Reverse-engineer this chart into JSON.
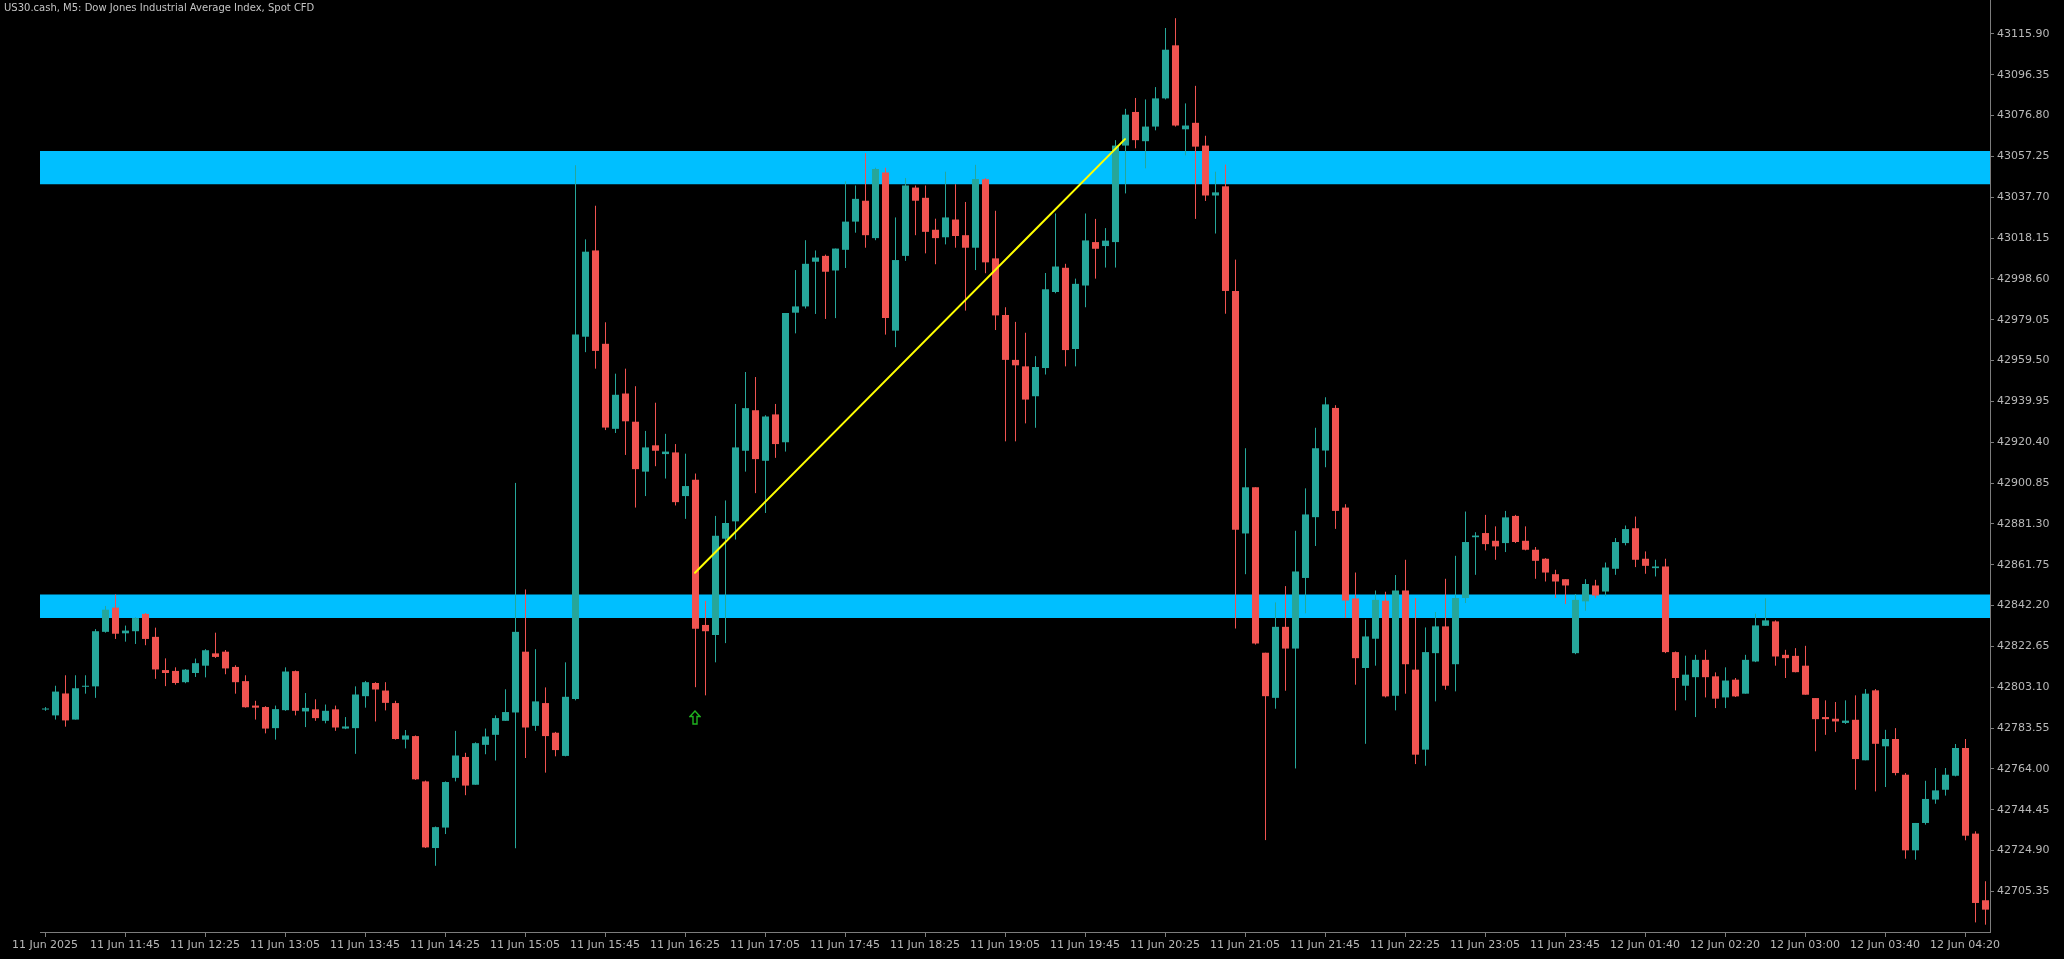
{
  "chart_data": {
    "type": "candlestick",
    "title": "US30.cash, M5: Dow Jones Industrial Average Index, Spot CFD",
    "categories": [
      "11 Jun 2025",
      null,
      null,
      null,
      null,
      null,
      null,
      null,
      "11 Jun 11:45",
      null,
      null,
      null,
      null,
      null,
      null,
      null,
      "11 Jun 12:25",
      null,
      null,
      null,
      null,
      null,
      null,
      null,
      "11 Jun 13:05",
      null,
      null,
      null,
      null,
      null,
      null,
      null,
      "11 Jun 13:45",
      null,
      null,
      null,
      null,
      null,
      null,
      null,
      "11 Jun 14:25",
      null,
      null,
      null,
      null,
      null,
      null,
      null,
      "11 Jun 15:05",
      null,
      null,
      null,
      null,
      null,
      null,
      null,
      "11 Jun 15:45",
      null,
      null,
      null,
      null,
      null,
      null,
      null,
      "11 Jun 16:25",
      null,
      null,
      null,
      null,
      null,
      null,
      null,
      "11 Jun 17:05",
      null,
      null,
      null,
      null,
      null,
      null,
      null,
      "11 Jun 17:45",
      null,
      null,
      null,
      null,
      null,
      null,
      null,
      "11 Jun 18:25",
      null,
      null,
      null,
      null,
      null,
      null,
      null,
      "11 Jun 19:05",
      null,
      null,
      null,
      null,
      null,
      null,
      null,
      "11 Jun 19:45",
      null,
      null,
      null,
      null,
      null,
      null,
      null,
      "11 Jun 20:25",
      null,
      null,
      null,
      null,
      null,
      null,
      null,
      "11 Jun 21:05",
      null,
      null,
      null,
      null,
      null,
      null,
      null,
      "11 Jun 21:45",
      null,
      null,
      null,
      null,
      null,
      null,
      null,
      "11 Jun 22:25",
      null,
      null,
      null,
      null,
      null,
      null,
      null,
      "11 Jun 23:05",
      null,
      null,
      null,
      null,
      null,
      null,
      null,
      "11 Jun 23:45",
      null,
      null,
      null,
      null,
      null,
      null,
      null,
      "12 Jun 01:40",
      null,
      null,
      null,
      null,
      null,
      null,
      null,
      "12 Jun 02:20",
      null,
      null,
      null,
      null,
      null,
      null,
      null,
      "12 Jun 03:00",
      null,
      null,
      null,
      null,
      null,
      null,
      null,
      "12 Jun 03:40",
      null,
      null,
      null,
      null,
      null,
      null,
      null,
      "12 Jun 04:20",
      null,
      null
    ],
    "ohlc": [
      [
        42792.4,
        42793.6,
        42791.8,
        42792.9
      ],
      [
        42789.6,
        42803.8,
        42787.6,
        42801.0
      ],
      [
        42800.1,
        42808.8,
        42784.2,
        42787.2
      ],
      [
        42787.6,
        42808.8,
        42787.6,
        42802.6
      ],
      [
        42803.3,
        42808.8,
        42800.0,
        42803.8
      ],
      [
        42803.5,
        42830.9,
        42798.0,
        42829.9
      ],
      [
        42829.6,
        42842.0,
        42829.2,
        42840.2
      ],
      [
        42841.2,
        42847.5,
        42826.2,
        42828.7
      ],
      [
        42828.9,
        42832.6,
        42824.9,
        42830.2
      ],
      [
        42829.9,
        42836.6,
        42823.8,
        42836.2
      ],
      [
        42838.2,
        42838.6,
        42823.2,
        42826.2
      ],
      [
        42827.2,
        42831.6,
        42807.1,
        42811.6
      ],
      [
        42811.3,
        42816.9,
        42803.6,
        42809.9
      ],
      [
        42810.9,
        42812.6,
        42804.3,
        42805.1
      ],
      [
        42805.5,
        42811.8,
        42805.0,
        42811.5
      ],
      [
        42809.9,
        42816.8,
        42808.0,
        42814.6
      ],
      [
        42813.4,
        42821.3,
        42807.8,
        42820.8
      ],
      [
        42819.3,
        42829.2,
        42817.1,
        42817.6
      ],
      [
        42820.1,
        42820.9,
        42809.3,
        42812.1
      ],
      [
        42812.8,
        42813.6,
        42800.0,
        42805.5
      ],
      [
        42806.0,
        42808.8,
        42793.3,
        42793.5
      ],
      [
        42794.3,
        42796.6,
        42787.6,
        42793.3
      ],
      [
        42793.6,
        42794.0,
        42781.0,
        42783.3
      ],
      [
        42783.5,
        42794.3,
        42778.0,
        42792.6
      ],
      [
        42792.1,
        42812.6,
        42791.8,
        42810.6
      ],
      [
        42810.8,
        42811.1,
        42789.6,
        42791.8
      ],
      [
        42791.5,
        42800.3,
        42784.0,
        42793.2
      ],
      [
        42792.5,
        42797.3,
        42787.0,
        42788.3
      ],
      [
        42787.0,
        42794.8,
        42785.8,
        42791.8
      ],
      [
        42792.5,
        42794.3,
        42782.2,
        42783.8
      ],
      [
        42783.3,
        42788.8,
        42783.0,
        42784.3
      ],
      [
        42783.5,
        42803.5,
        42771.2,
        42799.6
      ],
      [
        42798.8,
        42806.1,
        42793.3,
        42805.5
      ],
      [
        42805.1,
        42805.5,
        42786.7,
        42802.0
      ],
      [
        42801.5,
        42805.5,
        42792.0,
        42795.6
      ],
      [
        42795.5,
        42796.6,
        42778.0,
        42778.3
      ],
      [
        42778.0,
        42782.6,
        42773.8,
        42780.0
      ],
      [
        42779.7,
        42780.0,
        42758.7,
        42759.0
      ],
      [
        42758.0,
        42758.4,
        42726.1,
        42726.4
      ],
      [
        42726.1,
        42736.4,
        42717.6,
        42736.1
      ],
      [
        42735.9,
        42758.0,
        42732.8,
        42757.7
      ],
      [
        42759.7,
        42782.2,
        42758.0,
        42770.4
      ],
      [
        42769.7,
        42771.7,
        42751.4,
        42756.0
      ],
      [
        42756.4,
        42776.7,
        42756.4,
        42776.3
      ],
      [
        42775.5,
        42783.3,
        42771.0,
        42779.5
      ],
      [
        42780.3,
        42789.6,
        42768.0,
        42788.3
      ],
      [
        42787.0,
        42802.1,
        42787.0,
        42791.2
      ],
      [
        42791.0,
        42900.9,
        42726.0,
        42829.6
      ],
      [
        42820.1,
        42849.9,
        42769.2,
        42783.8
      ],
      [
        42784.6,
        42821.3,
        42782.2,
        42796.3
      ],
      [
        42795.5,
        42803.0,
        42762.2,
        42779.7
      ],
      [
        42781.3,
        42781.7,
        42770.0,
        42773.0
      ],
      [
        42770.2,
        42815.0,
        42770.0,
        42798.5
      ],
      [
        42797.4,
        43053.0,
        42796.8,
        42971.9
      ],
      [
        42970.9,
        43017.5,
        42963.5,
        43011.6
      ],
      [
        43012.2,
        43033.6,
        42955.6,
        42964.1
      ],
      [
        42967.5,
        42977.8,
        42926.2,
        42927.4
      ],
      [
        42926.8,
        42953.2,
        42924.8,
        42943.1
      ],
      [
        42943.7,
        42955.6,
        42914.3,
        42930.4
      ],
      [
        42930.2,
        42947.2,
        42889.1,
        42907.5
      ],
      [
        42906.3,
        42925.8,
        42894.6,
        42917.9
      ],
      [
        42918.9,
        42939.3,
        42908.9,
        42916.3
      ],
      [
        42914.7,
        42924.4,
        42903.0,
        42915.9
      ],
      [
        42915.5,
        42919.5,
        42890.1,
        42891.7
      ],
      [
        42894.6,
        42914.9,
        42883.7,
        42899.4
      ],
      [
        42902.4,
        42905.4,
        42803.1,
        42831.1
      ],
      [
        42832.9,
        42844.4,
        42799.2,
        42829.9
      ],
      [
        42828.1,
        42885.1,
        42815.0,
        42875.6
      ],
      [
        42874.2,
        42892.5,
        42824.2,
        42881.7
      ],
      [
        42882.5,
        42938.7,
        42873.8,
        42917.9
      ],
      [
        42916.3,
        42954.0,
        42906.3,
        42936.7
      ],
      [
        42935.7,
        42951.6,
        42896.0,
        42912.3
      ],
      [
        42911.5,
        42933.3,
        42886.5,
        42932.7
      ],
      [
        42933.7,
        42938.7,
        42912.9,
        42919.5
      ],
      [
        42920.4,
        42982.2,
        42915.9,
        42982.2
      ],
      [
        42982.4,
        43002.8,
        42972.5,
        42985.4
      ],
      [
        42985.4,
        43017.1,
        42984.4,
        43005.8
      ],
      [
        43006.8,
        43012.2,
        42981.8,
        43008.8
      ],
      [
        43009.6,
        43010.2,
        42979.4,
        43002.0
      ],
      [
        43002.6,
        43013.1,
        42979.8,
        43013.1
      ],
      [
        43012.5,
        43045.3,
        43003.8,
        43026.0
      ],
      [
        43026.0,
        43043.3,
        43020.7,
        43036.9
      ],
      [
        43036.0,
        43058.8,
        43013.5,
        43019.5
      ],
      [
        43018.1,
        43051.8,
        43017.1,
        43051.2
      ],
      [
        43049.5,
        43051.8,
        42971.9,
        42979.8
      ],
      [
        42973.8,
        43028.0,
        42965.9,
        43007.6
      ],
      [
        43009.6,
        43046.9,
        43007.2,
        43043.3
      ],
      [
        43042.3,
        43043.3,
        43019.5,
        43036.0
      ],
      [
        43037.4,
        43043.3,
        43010.8,
        43021.1
      ],
      [
        43022.1,
        43027.4,
        43005.6,
        43018.1
      ],
      [
        43018.5,
        43049.9,
        43015.1,
        43028.0
      ],
      [
        43027.0,
        43043.9,
        43013.5,
        43019.1
      ],
      [
        43019.5,
        43035.4,
        42983.4,
        43013.5
      ],
      [
        43013.5,
        43053.2,
        43002.8,
        43046.4
      ],
      [
        43046.3,
        43046.8,
        43001.3,
        43006.5
      ],
      [
        43008.4,
        43031.2,
        42974.1,
        42981.1
      ],
      [
        42981.3,
        42985.0,
        42920.8,
        42959.8
      ],
      [
        42959.8,
        42978.0,
        42920.8,
        42957.2
      ],
      [
        42956.7,
        42972.8,
        42929.4,
        42940.8
      ],
      [
        42942.4,
        42961.6,
        42927.3,
        42956.4
      ],
      [
        42955.9,
        43001.4,
        42952.8,
        42993.6
      ],
      [
        42992.3,
        43029.9,
        42991.7,
        43004.5
      ],
      [
        43003.9,
        43005.8,
        42956.7,
        42964.5
      ],
      [
        42965.0,
        42998.7,
        42956.7,
        42996.2
      ],
      [
        42995.4,
        43029.9,
        42985.0,
        43017.0
      ],
      [
        43016.2,
        43027.3,
        42998.7,
        43013.0
      ],
      [
        43014.3,
        43022.9,
        43004.0,
        43016.9
      ],
      [
        43016.2,
        43065.0,
        43004.0,
        43062.4
      ],
      [
        43062.4,
        43080.0,
        43039.5,
        43077.2
      ],
      [
        43078.5,
        43085.2,
        43061.1,
        43065.0
      ],
      [
        43064.5,
        43084.5,
        43051.5,
        43071.5
      ],
      [
        43071.5,
        43090.4,
        43069.7,
        43085.0
      ],
      [
        43085.0,
        43118.7,
        43084.5,
        43108.3
      ],
      [
        43110.4,
        43123.4,
        43071.5,
        43072.0
      ],
      [
        43070.2,
        43082.6,
        43057.7,
        43072.0
      ],
      [
        43073.3,
        43091.0,
        43027.3,
        43061.9
      ],
      [
        43062.4,
        43067.1,
        43035.9,
        43038.5
      ],
      [
        43038.5,
        43049.9,
        43020.3,
        43040.0
      ],
      [
        43042.9,
        43053.3,
        42981.9,
        42992.8
      ],
      [
        42992.8,
        43007.8,
        42831.2,
        42878.5
      ],
      [
        42876.7,
        42917.5,
        42857.2,
        42898.8
      ],
      [
        42898.8,
        42898.8,
        42823.5,
        42824.0
      ],
      [
        42819.6,
        42819.6,
        42729.9,
        42798.8
      ],
      [
        42798.0,
        42843.7,
        42792.8,
        42832.0
      ],
      [
        42832.0,
        42851.5,
        42801.4,
        42821.6
      ],
      [
        42821.6,
        42878.0,
        42764.2,
        42858.5
      ],
      [
        42855.4,
        42898.3,
        42838.5,
        42885.8
      ],
      [
        42884.5,
        42927.3,
        42870.7,
        42917.5
      ],
      [
        42916.4,
        42941.9,
        42908.4,
        42938.5
      ],
      [
        42936.8,
        42938.1,
        42878.9,
        42887.5
      ],
      [
        42889.1,
        42890.7,
        42836.2,
        42844.6
      ],
      [
        42845.6,
        42858.0,
        42804.3,
        42817.0
      ],
      [
        42812.3,
        42835.4,
        42776.0,
        42827.4
      ],
      [
        42826.3,
        42849.4,
        42813.4,
        42844.9
      ],
      [
        42844.5,
        42848.8,
        42798.2,
        42798.7
      ],
      [
        42799.0,
        42856.8,
        42792.0,
        42849.4
      ],
      [
        42849.4,
        42864.1,
        42800.0,
        42814.1
      ],
      [
        42811.5,
        42845.8,
        42766.3,
        42770.8
      ],
      [
        42773.2,
        42831.7,
        42765.5,
        42819.9
      ],
      [
        42819.4,
        42839.1,
        42796.3,
        42832.2
      ],
      [
        42832.2,
        42855.0,
        42801.9,
        42803.8
      ],
      [
        42814.1,
        42866.0,
        42801.1,
        42845.8
      ],
      [
        42845.8,
        42887.2,
        42843.4,
        42872.6
      ],
      [
        42874.9,
        42877.3,
        42856.9,
        42875.7
      ],
      [
        42876.9,
        42885.6,
        42868.6,
        42871.6
      ],
      [
        42873.2,
        42880.1,
        42864.1,
        42870.5
      ],
      [
        42872.1,
        42887.5,
        42867.8,
        42884.4
      ],
      [
        42885.1,
        42885.6,
        42872.1,
        42872.6
      ],
      [
        42873.2,
        42880.1,
        42868.6,
        42868.9
      ],
      [
        42868.9,
        42870.2,
        42855.0,
        42863.6
      ],
      [
        42864.6,
        42864.9,
        42853.7,
        42858.0
      ],
      [
        42857.2,
        42859.3,
        42845.8,
        42853.7
      ],
      [
        42854.8,
        42854.8,
        42842.9,
        42851.8
      ],
      [
        42819.4,
        42847.7,
        42818.9,
        42844.9
      ],
      [
        42844.2,
        42854.8,
        42839.7,
        42852.5
      ],
      [
        42851.8,
        42854.5,
        42845.8,
        42847.0
      ],
      [
        42848.9,
        42862.8,
        42846.6,
        42860.4
      ],
      [
        42859.8,
        42874.5,
        42856.9,
        42872.6
      ],
      [
        42872.1,
        42880.5,
        42871.0,
        42878.8
      ],
      [
        42879.2,
        42884.8,
        42860.6,
        42864.1
      ],
      [
        42864.6,
        42868.1,
        42857.4,
        42861.2
      ],
      [
        42860.1,
        42864.1,
        42856.1,
        42860.9
      ],
      [
        42860.9,
        42864.6,
        42819.4,
        42819.9
      ],
      [
        42819.9,
        42820.2,
        42792.0,
        42807.5
      ],
      [
        42803.8,
        42818.2,
        42796.8,
        42809.1
      ],
      [
        42807.9,
        42818.6,
        42788.8,
        42816.2
      ],
      [
        42816.2,
        42821.0,
        42798.2,
        42807.9
      ],
      [
        42808.3,
        42810.2,
        42793.1,
        42797.6
      ],
      [
        42798.2,
        42812.6,
        42793.1,
        42806.3
      ],
      [
        42806.7,
        42807.5,
        42798.4,
        42798.7
      ],
      [
        42800.0,
        42818.6,
        42800.0,
        42816.2
      ],
      [
        42815.4,
        42838.3,
        42815.1,
        42832.7
      ],
      [
        42832.5,
        42845.7,
        42832.5,
        42835.1
      ],
      [
        42834.6,
        42835.1,
        42813.4,
        42817.8
      ],
      [
        42818.6,
        42821.0,
        42807.5,
        42817.0
      ],
      [
        42818.1,
        42821.8,
        42810.2,
        42810.3
      ],
      [
        42813.4,
        42822.9,
        42799.5,
        42799.5
      ],
      [
        42797.9,
        42797.9,
        42772.4,
        42787.8
      ],
      [
        42788.8,
        42796.8,
        42780.3,
        42787.8
      ],
      [
        42788.0,
        42796.0,
        42781.6,
        42786.7
      ],
      [
        42786.0,
        42796.8,
        42785.5,
        42787.1
      ],
      [
        42787.5,
        42799.2,
        42754.0,
        42768.7
      ],
      [
        42768.1,
        42802.2,
        42768.1,
        42800.0
      ],
      [
        42801.6,
        42802.2,
        42753.2,
        42776.0
      ],
      [
        42774.8,
        42782.7,
        42755.3,
        42778.3
      ],
      [
        42778.3,
        42783.5,
        42760.9,
        42762.0
      ],
      [
        42761.2,
        42762.0,
        42721.0,
        42725.0
      ],
      [
        42725.0,
        42738.1,
        42720.5,
        42738.1
      ],
      [
        42738.1,
        42758.3,
        42737.3,
        42749.6
      ],
      [
        42749.3,
        42764.4,
        42747.3,
        42753.7
      ],
      [
        42754.0,
        42764.4,
        42751.2,
        42761.2
      ],
      [
        42760.7,
        42775.9,
        42760.4,
        42774.0
      ],
      [
        42774.0,
        42778.3,
        42729.8,
        42732.0
      ],
      [
        42733.0,
        42734.1,
        42690.5,
        42699.8
      ],
      [
        42701.1,
        42710.2,
        42689.4,
        42696.6
      ]
    ],
    "colors": [
      "#26a69a",
      "#26a69a",
      "#ef5350",
      "#26a69a",
      "#26a69a",
      "#26a69a",
      "#26a69a",
      "#ef5350",
      "#26a69a",
      "#26a69a",
      "#ef5350",
      "#ef5350",
      "#ef5350",
      "#ef5350",
      "#26a69a",
      "#26a69a",
      "#26a69a",
      "#ef5350",
      "#ef5350",
      "#ef5350",
      "#ef5350",
      "#ef5350",
      "#ef5350",
      "#26a69a",
      "#26a69a",
      "#ef5350",
      "#26a69a",
      "#ef5350",
      "#26a69a",
      "#ef5350",
      "#26a69a",
      "#26a69a",
      "#26a69a",
      "#ef5350",
      "#ef5350",
      "#ef5350",
      "#26a69a",
      "#ef5350",
      "#ef5350",
      "#26a69a",
      "#26a69a",
      "#26a69a",
      "#ef5350",
      "#26a69a",
      "#26a69a",
      "#26a69a",
      "#26a69a",
      "#26a69a",
      "#ef5350",
      "#26a69a",
      "#ef5350",
      "#ef5350",
      "#26a69a",
      "#26a69a",
      "#26a69a",
      "#ef5350",
      "#ef5350",
      "#26a69a",
      "#ef5350",
      "#ef5350",
      "#26a69a",
      "#ef5350",
      "#26a69a",
      "#ef5350",
      "#26a69a",
      "#ef5350",
      "#ef5350",
      "#26a69a",
      "#26a69a",
      "#26a69a",
      "#26a69a",
      "#ef5350",
      "#26a69a",
      "#ef5350",
      "#26a69a",
      "#26a69a",
      "#26a69a",
      "#26a69a",
      "#ef5350",
      "#26a69a",
      "#26a69a",
      "#26a69a",
      "#ef5350",
      "#26a69a",
      "#ef5350",
      "#26a69a",
      "#26a69a",
      "#ef5350",
      "#ef5350",
      "#ef5350",
      "#26a69a",
      "#ef5350",
      "#ef5350",
      "#26a69a",
      "#ef5350",
      "#ef5350",
      "#ef5350",
      "#ef5350",
      "#ef5350",
      "#26a69a",
      "#26a69a",
      "#26a69a",
      "#ef5350",
      "#26a69a",
      "#26a69a",
      "#ef5350",
      "#26a69a",
      "#26a69a",
      "#26a69a",
      "#ef5350",
      "#26a69a",
      "#26a69a",
      "#26a69a",
      "#ef5350",
      "#26a69a",
      "#ef5350",
      "#ef5350",
      "#26a69a",
      "#ef5350",
      "#ef5350",
      "#26a69a",
      "#ef5350",
      "#ef5350",
      "#26a69a",
      "#ef5350",
      "#26a69a",
      "#26a69a",
      "#26a69a",
      "#26a69a",
      "#ef5350",
      "#ef5350",
      "#ef5350",
      "#26a69a",
      "#26a69a",
      "#ef5350",
      "#26a69a",
      "#ef5350",
      "#ef5350",
      "#26a69a",
      "#26a69a",
      "#ef5350",
      "#26a69a",
      "#26a69a",
      "#26a69a",
      "#ef5350",
      "#ef5350",
      "#26a69a",
      "#ef5350",
      "#ef5350",
      "#ef5350",
      "#ef5350",
      "#ef5350",
      "#ef5350",
      "#26a69a",
      "#26a69a",
      "#ef5350",
      "#26a69a",
      "#26a69a",
      "#26a69a",
      "#ef5350",
      "#ef5350",
      "#26a69a",
      "#ef5350",
      "#ef5350",
      "#26a69a",
      "#26a69a",
      "#ef5350",
      "#ef5350",
      "#26a69a",
      "#ef5350",
      "#26a69a",
      "#26a69a",
      "#26a69a",
      "#ef5350",
      "#ef5350",
      "#ef5350",
      "#ef5350",
      "#ef5350",
      "#ef5350",
      "#ef5350",
      "#26a69a",
      "#ef5350",
      "#26a69a",
      "#ef5350",
      "#26a69a",
      "#ef5350",
      "#ef5350",
      "#26a69a",
      "#26a69a",
      "#26a69a",
      "#26a69a",
      "#26a69a",
      "#ef5350",
      "#ef5350",
      "#ef5350"
    ],
    "series": [
      {
        "type": "line",
        "color": "#ffff00",
        "values": [
          null,
          null,
          null,
          null,
          null,
          null,
          null,
          null,
          null,
          null,
          null,
          null,
          null,
          null,
          null,
          null,
          null,
          null,
          null,
          null,
          null,
          null,
          null,
          null,
          null,
          null,
          null,
          null,
          null,
          null,
          null,
          null,
          null,
          null,
          null,
          null,
          null,
          null,
          null,
          null,
          null,
          null,
          null,
          null,
          null,
          null,
          null,
          null,
          null,
          null,
          null,
          null,
          null,
          null,
          null,
          null,
          null,
          null,
          null,
          null,
          null,
          null,
          null,
          null,
          null,
          42857.9,
          null,
          null,
          null,
          null,
          null,
          null,
          null,
          null,
          null,
          null,
          null,
          null,
          null,
          null,
          null,
          null,
          null,
          null,
          null,
          null,
          null,
          null,
          null,
          null,
          null,
          null,
          null,
          null,
          null,
          null,
          null,
          null,
          null,
          null,
          null,
          null,
          null,
          null,
          null,
          null,
          null,
          null,
          43065.5,
          null,
          null,
          null,
          null,
          null,
          null,
          null,
          null,
          null,
          null,
          null,
          null,
          null,
          null,
          null,
          null,
          null,
          null,
          null,
          null,
          null,
          null,
          null,
          null,
          null,
          null,
          null,
          null,
          null,
          null,
          null,
          null,
          null,
          null,
          null,
          null,
          null,
          null,
          null,
          null,
          null,
          null,
          null,
          null,
          null,
          null,
          null,
          null,
          null,
          null,
          null,
          null,
          null,
          null,
          null,
          null,
          null,
          null,
          null,
          null,
          null,
          null,
          null,
          null,
          null,
          null,
          null,
          null,
          null,
          null,
          null,
          null,
          null,
          null,
          null,
          null,
          null,
          null,
          null,
          null,
          null,
          null,
          null,
          null,
          null,
          null
        ]
      }
    ],
    "bands": [
      {
        "axis": "y",
        "from": 42836.2,
        "to": 42847.5,
        "color": "#00bfff"
      },
      {
        "axis": "y",
        "from": 43043.9,
        "to": 43059.8,
        "color": "#00bfff"
      }
    ],
    "ylim": [
      42685.9,
      43132.1
    ],
    "yticks": [
      42705.35,
      {
        "value": 42724.9,
        "label": "42724.90"
      },
      42744.45,
      {
        "value": 42764,
        "label": "42764.00"
      },
      42783.55,
      {
        "value": 42803.1,
        "label": "42803.10"
      },
      42822.65,
      {
        "value": 42842.2,
        "label": "42842.20"
      },
      42861.75,
      {
        "value": 42881.3,
        "label": "42881.30"
      },
      42900.85,
      {
        "value": 42920.4,
        "label": "42920.40"
      },
      42939.95,
      {
        "value": 42959.5,
        "label": "42959.50"
      },
      42979.05,
      {
        "value": 42998.6,
        "label": "42998.60"
      },
      43018.15,
      {
        "value": 43037.7,
        "label": "43037.70"
      },
      43057.25,
      {
        "value": 43076.8,
        "label": "43076.80"
      },
      43096.35,
      {
        "value": 43115.9,
        "label": "43115.90"
      }
    ]
  }
}
